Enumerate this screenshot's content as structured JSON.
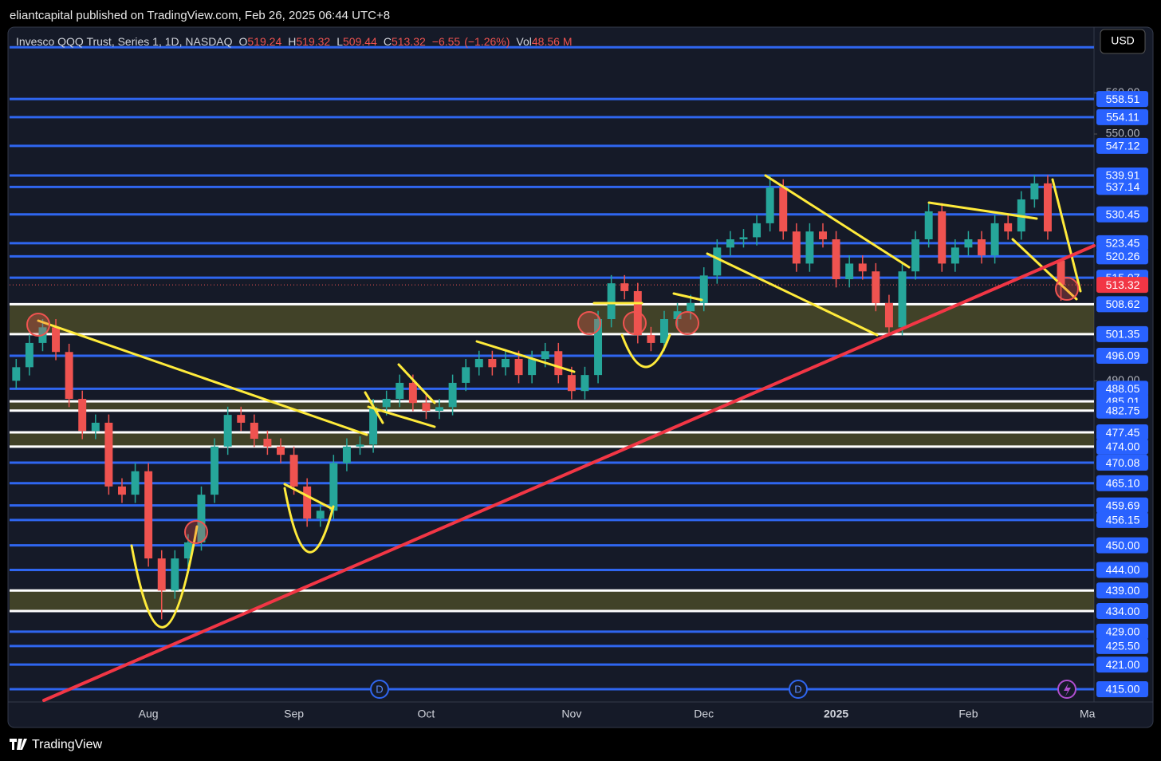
{
  "header": {
    "publisher_line": "eliantcapital published on TradingView.com, Feb 26, 2025 06:44 UTC+8",
    "currency": "USD",
    "brand": "TradingView",
    "events": [
      "D",
      "D"
    ]
  },
  "legend": {
    "letters": [
      "O",
      "H",
      "L",
      "C"
    ],
    "change": {
      "value": -6.55,
      "label": "−6.55"
    },
    "change_pct": {
      "value": -1.26,
      "label": "(−1.26%)"
    },
    "volume_name": "Vol",
    "volume": {
      "value": 48.56,
      "label": "48.56 M"
    }
  },
  "chart_data": {
    "type": "candlestick",
    "title": "Invesco QQQ Trust, Series 1, 1D, NASDAQ",
    "categories": [
      null,
      null,
      null,
      null,
      null,
      null,
      null,
      null,
      null,
      null,
      "Aug",
      null,
      null,
      null,
      null,
      null,
      null,
      null,
      null,
      null,
      null,
      "Sep",
      null,
      null,
      null,
      null,
      null,
      null,
      null,
      null,
      null,
      "Oct",
      null,
      null,
      null,
      null,
      null,
      null,
      null,
      null,
      null,
      null,
      "Nov",
      null,
      null,
      null,
      null,
      null,
      null,
      null,
      null,
      null,
      "Dec",
      null,
      null,
      null,
      null,
      null,
      null,
      null,
      null,
      null,
      "2025",
      null,
      null,
      null,
      null,
      null,
      null,
      null,
      null,
      null,
      "Feb",
      null,
      null,
      null,
      null,
      null,
      null,
      null,
      null,
      "Ma"
    ],
    "open": [
      490,
      493.3,
      499.2,
      503,
      497,
      485.6,
      477.8,
      479.8,
      464.3,
      462.3,
      468,
      446.8,
      439,
      446.8,
      450.7,
      462.3,
      474,
      481.7,
      479.8,
      475.9,
      474,
      472,
      464.3,
      456.5,
      458.4,
      470,
      474,
      474.5,
      483.6,
      485.6,
      489.5,
      484.6,
      482.7,
      483.6,
      489.5,
      493.3,
      495.3,
      493.3,
      495.3,
      491.4,
      495.3,
      497.2,
      491.4,
      487.5,
      491.4,
      505,
      513.7,
      511.8,
      501.1,
      499.2,
      505,
      506.9,
      508.9,
      515.6,
      522.4,
      524.4,
      524.9,
      528.3,
      537,
      526.3,
      518.5,
      526.3,
      524.4,
      514.7,
      518.5,
      516.6,
      508.9,
      503,
      516.6,
      524.4,
      531.2,
      518.5,
      522.4,
      524.4,
      520.5,
      528.3,
      526.3,
      534.1,
      538,
      519.24,
      null,
      null
    ],
    "high": [
      495.3,
      501.2,
      505,
      505,
      499,
      487.6,
      481.8,
      481.8,
      466.3,
      470,
      470,
      448.8,
      448.8,
      452.7,
      464.3,
      476,
      483.7,
      483.7,
      481.8,
      477.9,
      476,
      474,
      466.3,
      460.4,
      472,
      476,
      476.5,
      485.6,
      487.6,
      491.5,
      491.5,
      486.6,
      485.6,
      491.5,
      495.3,
      497.3,
      497.3,
      497.3,
      497.3,
      497.3,
      499.2,
      499.2,
      493.4,
      493.4,
      507,
      515.7,
      515.7,
      513.8,
      503.1,
      507,
      508.9,
      510.9,
      517.6,
      524.4,
      526.4,
      526.9,
      530.3,
      540,
      539,
      528.3,
      528.3,
      528.3,
      526.4,
      520.5,
      520.5,
      518.6,
      510.9,
      518.6,
      526.4,
      533.2,
      533.2,
      524.4,
      526.4,
      526.4,
      530.3,
      530.3,
      536.1,
      540,
      540,
      519.32,
      null,
      null
    ],
    "low": [
      488,
      491.3,
      497.2,
      495,
      483.6,
      475.8,
      475.8,
      462.3,
      460.3,
      460.3,
      444.8,
      432,
      437,
      444.8,
      448.7,
      460.3,
      472,
      477.8,
      473.9,
      472,
      470,
      462.3,
      454.5,
      454.5,
      456.4,
      468,
      472,
      472.5,
      481.6,
      483.6,
      482.6,
      480.7,
      480.7,
      481.6,
      487.5,
      491.3,
      491.3,
      491.3,
      489.4,
      489.4,
      493.3,
      489.4,
      485.5,
      485.5,
      489.4,
      503,
      509.8,
      499.1,
      497.2,
      497.2,
      503,
      504.9,
      506.9,
      513.6,
      520.4,
      522.4,
      522.9,
      526.3,
      524.3,
      516.5,
      516.5,
      522.4,
      512.7,
      512.7,
      514.6,
      506.9,
      501,
      501,
      514.6,
      522.4,
      516.5,
      516.5,
      520.4,
      518.5,
      518.5,
      524.3,
      524.3,
      532.1,
      524.3,
      509.44,
      null,
      null
    ],
    "close": [
      493.3,
      499.2,
      503,
      497,
      485.6,
      477.8,
      479.8,
      464.3,
      462.3,
      468,
      446.8,
      439,
      446.8,
      450.7,
      462.3,
      474,
      481.7,
      479.8,
      475.9,
      474,
      472,
      464.3,
      456.5,
      458.4,
      470,
      474,
      474.5,
      483.6,
      485.6,
      489.5,
      484.6,
      482.7,
      483.6,
      489.5,
      493.3,
      495.3,
      493.3,
      495.3,
      491.4,
      495.3,
      497.2,
      491.4,
      487.5,
      491.4,
      505,
      513.7,
      511.8,
      501.1,
      499.2,
      505,
      506.9,
      508.9,
      515.6,
      522.4,
      524.4,
      524.9,
      528.3,
      537,
      526.3,
      518.5,
      526.3,
      524.4,
      514.7,
      518.5,
      516.6,
      508.9,
      503,
      516.6,
      524.4,
      531.2,
      518.5,
      522.4,
      524.4,
      520.5,
      528.3,
      526.3,
      534.1,
      538,
      526.3,
      513.32,
      null,
      null
    ],
    "up_color": "#26a69a",
    "down_color": "#ef5350",
    "ylim": [
      411.9,
      575.8
    ],
    "yticks": [
      {
        "value": 560,
        "label": "560.00"
      },
      {
        "value": 550,
        "label": "550.00"
      },
      {
        "value": 490,
        "label": "490.00"
      }
    ],
    "extra_lines": [
      571.1
    ],
    "levels": [
      {
        "price": 558.51,
        "color": "#2f66f0"
      },
      {
        "price": 554.11,
        "color": "#2f66f0"
      },
      {
        "price": 547.12,
        "color": "#2f66f0"
      },
      {
        "price": 539.91,
        "color": "#2f66f0"
      },
      {
        "price": 537.14,
        "color": "#2f66f0"
      },
      {
        "price": 530.45,
        "color": "#2f66f0"
      },
      {
        "price": 523.45,
        "color": "#2f66f0"
      },
      {
        "price": 520.26,
        "color": "#2f66f0"
      },
      {
        "price": 515.07,
        "color": "#2f66f0"
      },
      {
        "price": 508.62,
        "color": "#ffffff"
      },
      {
        "price": 501.35,
        "color": "#ffffff"
      },
      {
        "price": 496.09,
        "color": "#2f66f0"
      },
      {
        "price": 488.05,
        "color": "#2f66f0"
      },
      {
        "price": 485.01,
        "color": "#ffffff"
      },
      {
        "price": 482.75,
        "color": "#ffffff"
      },
      {
        "price": 477.45,
        "color": "#ffffff"
      },
      {
        "price": 474,
        "label": "474.00",
        "color": "#ffffff"
      },
      {
        "price": 470.08,
        "color": "#2f66f0"
      },
      {
        "price": 465.1,
        "label": "465.10",
        "color": "#2f66f0"
      },
      {
        "price": 459.69,
        "color": "#2f66f0"
      },
      {
        "price": 456.15,
        "color": "#2f66f0"
      },
      {
        "price": 450,
        "label": "450.00",
        "color": "#2f66f0"
      },
      {
        "price": 444,
        "label": "444.00",
        "color": "#2f66f0"
      },
      {
        "price": 439,
        "label": "439.00",
        "color": "#ffffff"
      },
      {
        "price": 434,
        "label": "434.00",
        "color": "#ffffff"
      },
      {
        "price": 429,
        "label": "429.00",
        "color": "#2f66f0"
      },
      {
        "price": 425.5,
        "label": "425.50",
        "color": "#2f66f0"
      },
      {
        "price": 421,
        "label": "421.00",
        "color": "#2f66f0"
      },
      {
        "price": 415,
        "label": "415.00",
        "color": "#2f66f0"
      }
    ],
    "zones": [
      [
        508.62,
        501.35
      ],
      [
        485.01,
        482.75
      ],
      [
        477.45,
        474
      ],
      [
        439,
        434
      ]
    ]
  }
}
